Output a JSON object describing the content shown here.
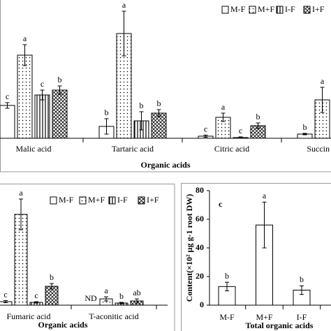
{
  "chart_data": [
    {
      "type": "bar",
      "categories": [
        "Malic acid",
        "Tartaric acid",
        "Citric acid",
        "Succin"
      ],
      "series": [
        {
          "name": "M-F",
          "fill": "white",
          "values": [
            47,
            17,
            3,
            6
          ],
          "errors": [
            4,
            11,
            1.5,
            1
          ],
          "letters": [
            "c",
            "b",
            "c",
            "b"
          ]
        },
        {
          "name": "M+F",
          "fill": "dots",
          "values": [
            119,
            150,
            30,
            55
          ],
          "errors": [
            15,
            32,
            6,
            18
          ],
          "letters": [
            "a",
            "a",
            "a",
            "a"
          ]
        },
        {
          "name": "I-F",
          "fill": "vstripes",
          "values": [
            62,
            25,
            1,
            null
          ],
          "errors": [
            7,
            13,
            1,
            null
          ],
          "letters": [
            "c",
            "b",
            "c",
            null
          ]
        },
        {
          "name": "I+F",
          "fill": "hatch",
          "values": [
            69,
            36,
            18,
            null
          ],
          "errors": [
            6,
            5,
            4,
            null
          ],
          "letters": [
            "b",
            "b",
            "b",
            null
          ]
        }
      ],
      "ylim": [
        0,
        200
      ],
      "x_label": "Organic acids",
      "legend": "top-right"
    },
    {
      "type": "bar",
      "categories": [
        "Fumaric acid",
        "T-aconitic acid"
      ],
      "series": [
        {
          "name": "M-F",
          "fill": "white",
          "values": [
            5,
            null
          ],
          "errors": [
            1.5,
            null
          ],
          "letters": [
            "c",
            "ND"
          ]
        },
        {
          "name": "M+F",
          "fill": "dots",
          "values": [
            130,
            9
          ],
          "errors": [
            22,
            3
          ],
          "letters": [
            "a",
            "a"
          ]
        },
        {
          "name": "I-F",
          "fill": "vstripes",
          "values": [
            4,
            3
          ],
          "errors": [
            1,
            1
          ],
          "letters": [
            "c",
            "b"
          ]
        },
        {
          "name": "I+F",
          "fill": "hatch",
          "values": [
            27,
            6
          ],
          "errors": [
            4,
            3
          ],
          "letters": [
            "b",
            "ab"
          ]
        }
      ],
      "ylim": [
        0,
        170
      ],
      "x_label": "Organic acids",
      "legend": "top"
    },
    {
      "type": "bar",
      "panel_label": "c",
      "categories": [
        "M-F",
        "M+F",
        "I-F"
      ],
      "series": [
        {
          "fill": "white",
          "values": [
            13,
            56,
            10.5
          ],
          "errors": [
            3,
            16,
            3
          ],
          "letters": [
            "b",
            "a",
            "b"
          ]
        }
      ],
      "ylim": [
        0,
        80
      ],
      "yticks": [
        0,
        20,
        40,
        60,
        80
      ],
      "y_label": "Content(×10² µg g-1 root DW)",
      "x_label": "Total organic acids"
    }
  ]
}
